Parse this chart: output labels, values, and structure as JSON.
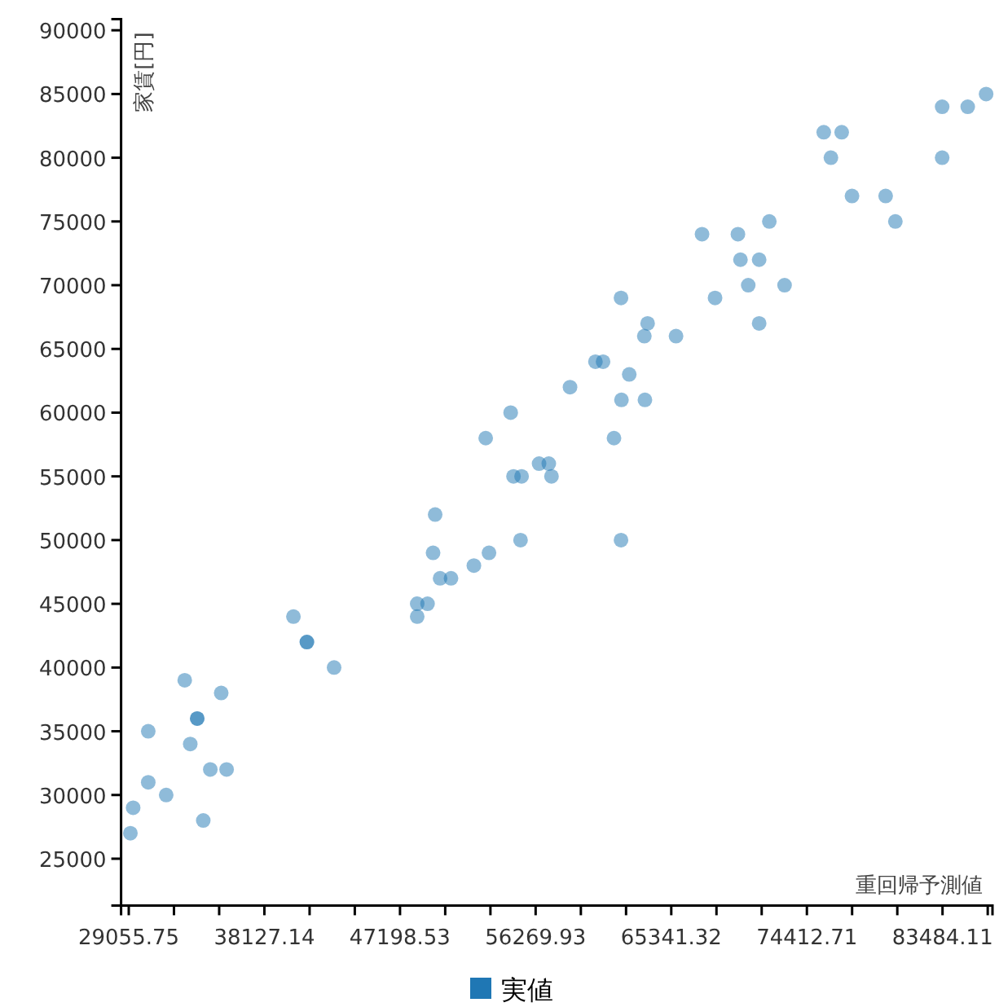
{
  "chart_data": {
    "type": "scatter",
    "xlabel": "重回帰予測値",
    "ylabel": "家賃[円]",
    "xlim": [
      28543,
      86826
    ],
    "ylim": [
      21330,
      90880
    ],
    "xticks": [
      {
        "value": 29055.75,
        "label": "29055.75"
      },
      {
        "value": 32079.55,
        "label": null
      },
      {
        "value": 35103.35,
        "label": null
      },
      {
        "value": 38127.14,
        "label": "38127.14"
      },
      {
        "value": 41150.94,
        "label": null
      },
      {
        "value": 44174.74,
        "label": null
      },
      {
        "value": 47198.53,
        "label": "47198.53"
      },
      {
        "value": 50222.33,
        "label": null
      },
      {
        "value": 53246.13,
        "label": null
      },
      {
        "value": 56269.93,
        "label": "56269.93"
      },
      {
        "value": 59293.72,
        "label": null
      },
      {
        "value": 62317.52,
        "label": null
      },
      {
        "value": 65341.32,
        "label": "65341.32"
      },
      {
        "value": 68365.11,
        "label": null
      },
      {
        "value": 71388.91,
        "label": null
      },
      {
        "value": 74412.71,
        "label": "74412.71"
      },
      {
        "value": 77436.5,
        "label": null
      },
      {
        "value": 80460.3,
        "label": null
      },
      {
        "value": 83484.11,
        "label": "83484.11"
      },
      {
        "value": 86507.9,
        "label": null
      }
    ],
    "yticks": [
      25000,
      30000,
      35000,
      40000,
      45000,
      50000,
      55000,
      60000,
      65000,
      70000,
      75000,
      80000,
      85000,
      90000
    ],
    "grid": false,
    "legend": "bottom",
    "marker": "circle",
    "series": [
      {
        "name": "実値",
        "color": "#1f77b4",
        "x": [
          29165,
          29350,
          30360,
          30360,
          31560,
          32800,
          33170,
          33635,
          33635,
          34040,
          34510,
          35600,
          35240,
          40070,
          40970,
          40970,
          42790,
          48350,
          48350,
          49040,
          49410,
          49550,
          49880,
          50610,
          52140,
          53150,
          55260,
          54790,
          55330,
          56500,
          57150,
          57330,
          61980,
          52930,
          54600,
          58570,
          61510,
          62010,
          63580,
          61980,
          62530,
          60270,
          60780,
          63540,
          63760,
          65660,
          68270,
          67400,
          69800,
          69970,
          71220,
          70490,
          72920,
          71220,
          71900,
          75540,
          76740,
          76020,
          77430,
          79680,
          80330,
          83460,
          83460,
          85170,
          86400
        ],
        "values": [
          27000,
          29000,
          31000,
          35000,
          30000,
          39000,
          34000,
          36000,
          36000,
          28000,
          32000,
          32000,
          38000,
          44000,
          42000,
          42000,
          40000,
          44000,
          45000,
          45000,
          49000,
          52000,
          47000,
          47000,
          48000,
          49000,
          50000,
          55000,
          55000,
          56000,
          56000,
          55000,
          50000,
          58000,
          60000,
          62000,
          58000,
          61000,
          61000,
          69000,
          63000,
          64000,
          64000,
          66000,
          67000,
          66000,
          69000,
          74000,
          74000,
          72000,
          72000,
          70000,
          70000,
          67000,
          75000,
          82000,
          82000,
          80000,
          77000,
          77000,
          75000,
          84000,
          80000,
          84000,
          85000
        ]
      }
    ]
  }
}
